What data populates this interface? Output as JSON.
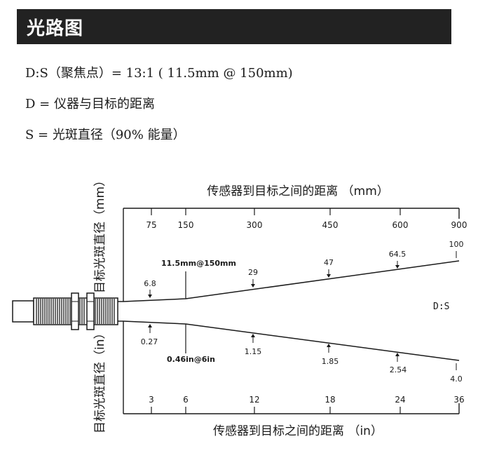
{
  "title": "光路图",
  "spec_lines": [
    "D:S（聚焦点）= 13:1 ( 11.5mm @ 150mm)",
    "D = 仪器与目标的距离",
    "S = 光斑直径（90% 能量）"
  ],
  "diagram": {
    "top_axis_title": "传感器到目标之间的距离 （mm）",
    "bottom_axis_title": "传感器到目标之间的距离 （in）",
    "left_title_top": "目标光斑直径（mm）",
    "left_title_bottom": "目标光斑直径（in）",
    "ratio_label": "D:S",
    "focus_label_mm": "11.5mm@150mm",
    "focus_label_in": "0.46in@6in",
    "distance_mm_ticks": [
      "75",
      "150",
      "300",
      "450",
      "600",
      "900"
    ],
    "distance_in_ticks": [
      "3",
      "6",
      "12",
      "18",
      "24",
      "36"
    ],
    "spot_mm_values": [
      "6.8",
      "29",
      "47",
      "64.5",
      "100"
    ],
    "spot_in_values": [
      "0.27",
      "1.15",
      "1.85",
      "2.54",
      "4.0"
    ]
  }
}
